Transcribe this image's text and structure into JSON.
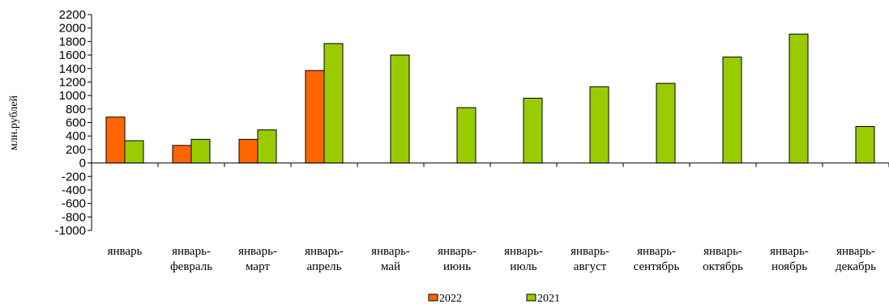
{
  "colors": {
    "s2022": "#ff6600",
    "s2021": "#99cc00",
    "axis": "#000000",
    "bar_stroke": "#000000"
  },
  "chart_data": {
    "type": "bar",
    "title": "",
    "xlabel": "",
    "ylabel": "млн.рублей",
    "ylim": [
      -1000,
      2200
    ],
    "ytick_step": 200,
    "grid": false,
    "legend_position": "bottom",
    "categories": [
      [
        "январь"
      ],
      [
        "январь-",
        "февраль"
      ],
      [
        "январь-",
        "март"
      ],
      [
        "январь-",
        "апрель"
      ],
      [
        "январь-",
        "май"
      ],
      [
        "январь-",
        "июнь"
      ],
      [
        "январь-",
        "июль"
      ],
      [
        "январь-",
        "август"
      ],
      [
        "январь-",
        "сентябрь"
      ],
      [
        "январь-",
        "октябрь"
      ],
      [
        "январь-",
        "ноябрь"
      ],
      [
        "январь-",
        "декабрь"
      ]
    ],
    "series": [
      {
        "name": "2022",
        "color": "#ff6600",
        "values": [
          680,
          260,
          350,
          1370,
          null,
          null,
          null,
          null,
          null,
          null,
          null,
          null
        ]
      },
      {
        "name": "2021",
        "color": "#99cc00",
        "values": [
          330,
          350,
          490,
          1770,
          1600,
          820,
          960,
          1130,
          1180,
          1570,
          1910,
          540
        ]
      }
    ]
  }
}
